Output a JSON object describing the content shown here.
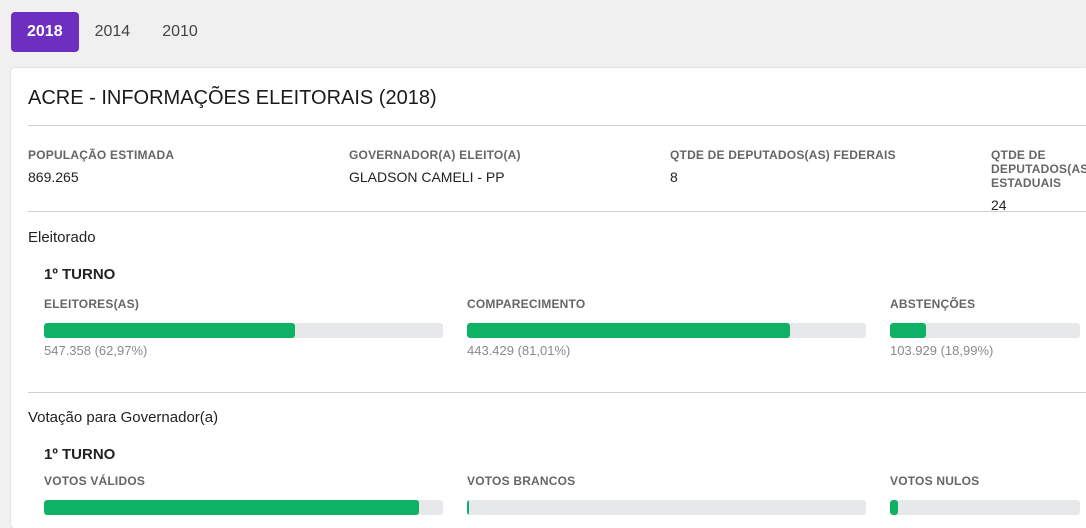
{
  "tabs": [
    {
      "label": "2018",
      "active": true
    },
    {
      "label": "2014"
    },
    {
      "label": "2010"
    }
  ],
  "title": "ACRE - INFORMAÇÕES ELEITORAIS (2018)",
  "info": [
    {
      "label": "POPULAÇÃO ESTIMADA",
      "value": "869.265"
    },
    {
      "label": "GOVERNADOR(A) ELEITO(A)",
      "value": "GLADSON CAMELI - PP"
    },
    {
      "label": "QTDE DE DEPUTADOS(AS) FEDERAIS",
      "value": "8"
    },
    {
      "label": "QTDE DE DEPUTADOS(AS) ESTADUAIS",
      "value": "24"
    }
  ],
  "eleitorado": {
    "heading": "Eleitorado",
    "turno": "1º TURNO",
    "stats": [
      {
        "label": "ELEITORES(AS)",
        "value": "547.358 (62,97%)",
        "percent": 62.97
      },
      {
        "label": "COMPARECIMENTO",
        "value": "443.429 (81,01%)",
        "percent": 81.01
      },
      {
        "label": "ABSTENÇÕES",
        "value": "103.929 (18,99%)",
        "percent": 18.99
      }
    ]
  },
  "governador": {
    "heading": "Votação para Governador(a)",
    "turno": "1º TURNO",
    "stats": [
      {
        "label": "VOTOS VÁLIDOS",
        "percent": 94
      },
      {
        "label": "VOTOS BRANCOS",
        "percent": 0.5
      },
      {
        "label": "VOTOS NULOS",
        "percent": 4
      }
    ]
  },
  "colors": {
    "accent": "#6c2fbf",
    "bar_fill": "#0fb265",
    "bar_track": "#e6e8ea"
  }
}
